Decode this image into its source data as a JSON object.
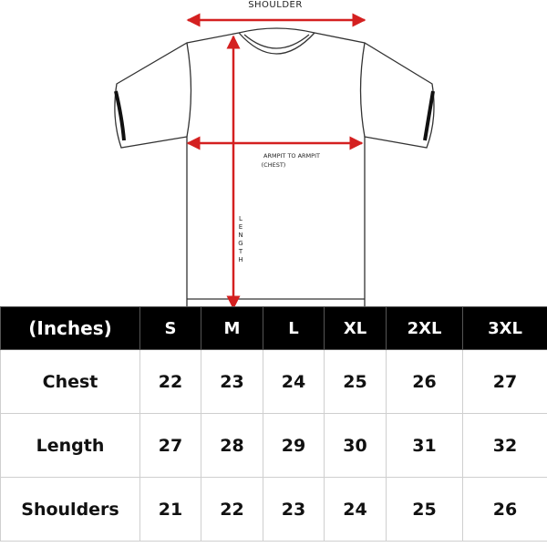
{
  "diagram": {
    "shoulder": "SHOULDER",
    "armpit": "ARMPIT TO ARMPIT",
    "chest": "(CHEST)",
    "length": "LENGTH"
  },
  "table": {
    "header": [
      "(Inches)",
      "S",
      "M",
      "L",
      "XL",
      "2XL",
      "3XL"
    ],
    "rows": [
      {
        "label": "Chest",
        "values": [
          22,
          23,
          24,
          25,
          26,
          27
        ]
      },
      {
        "label": "Length",
        "values": [
          27,
          28,
          29,
          30,
          31,
          32
        ]
      },
      {
        "label": "Shoulders",
        "values": [
          21,
          22,
          23,
          24,
          25,
          26
        ]
      }
    ]
  }
}
